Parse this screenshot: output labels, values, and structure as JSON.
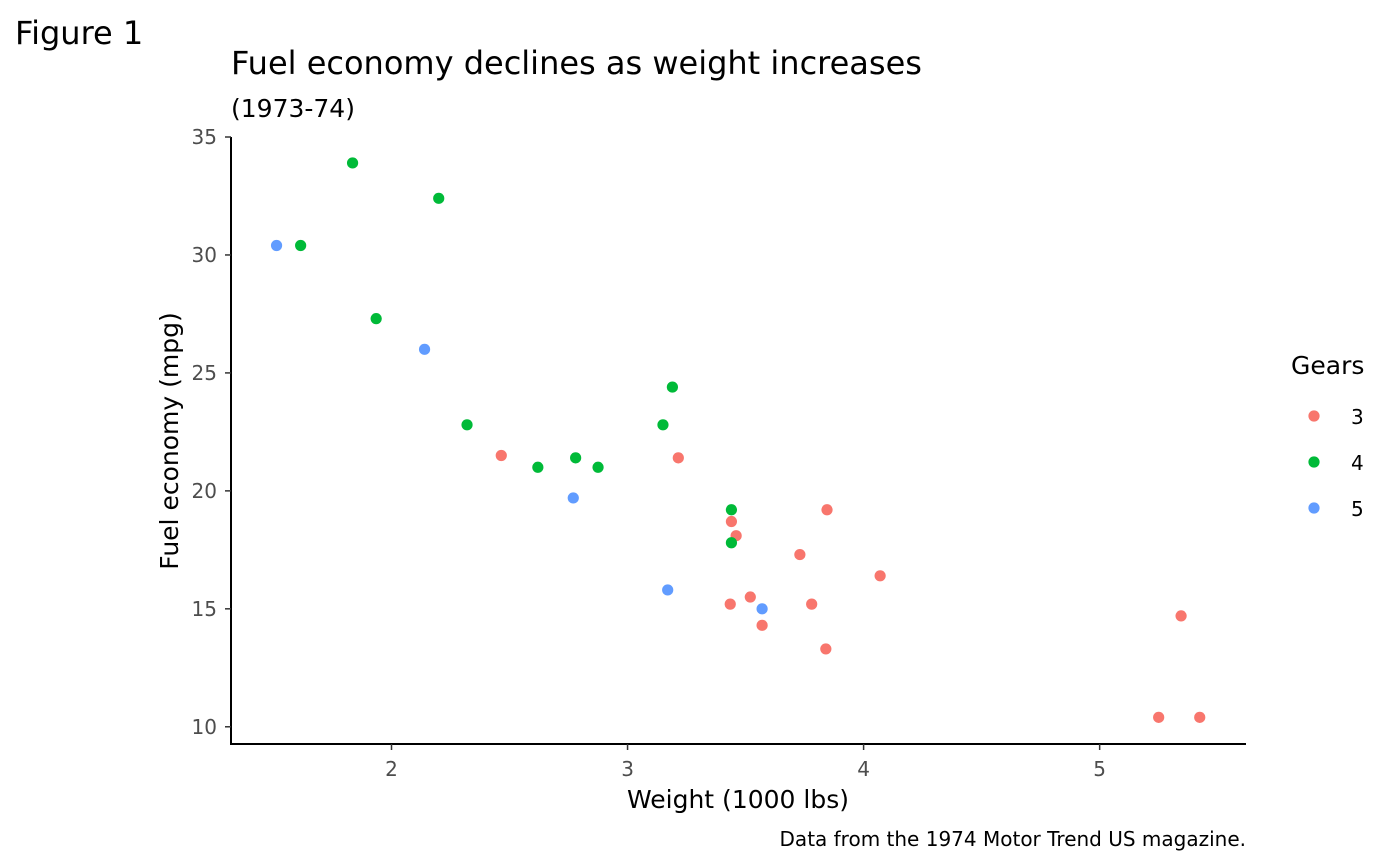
{
  "figure_label": "Figure 1",
  "chart_data": {
    "type": "scatter",
    "title": "Fuel economy declines as weight increases",
    "subtitle": "(1973-74)",
    "xlabel": "Weight (1000 lbs)",
    "ylabel": "Fuel economy (mpg)",
    "caption": "Data from the 1974 Motor Trend US magazine.",
    "xlim": [
      1.32,
      5.62
    ],
    "ylim": [
      9.27,
      35.0
    ],
    "xticks": [
      2,
      3,
      4,
      5
    ],
    "yticks": [
      10,
      15,
      20,
      25,
      30,
      35
    ],
    "grid": false,
    "legend": {
      "title": "Gears",
      "position": "right"
    },
    "series": [
      {
        "name": "3",
        "color": "#F8766D",
        "points": [
          [
            3.215,
            21.4
          ],
          [
            3.44,
            18.7
          ],
          [
            3.46,
            18.1
          ],
          [
            3.57,
            14.3
          ],
          [
            4.07,
            16.4
          ],
          [
            3.73,
            17.3
          ],
          [
            3.78,
            15.2
          ],
          [
            5.25,
            10.4
          ],
          [
            5.424,
            10.4
          ],
          [
            5.345,
            14.7
          ],
          [
            2.465,
            21.5
          ],
          [
            3.52,
            15.5
          ],
          [
            3.435,
            15.2
          ],
          [
            3.84,
            13.3
          ],
          [
            3.845,
            19.2
          ]
        ]
      },
      {
        "name": "4",
        "color": "#00BA38",
        "points": [
          [
            2.62,
            21.0
          ],
          [
            2.875,
            21.0
          ],
          [
            2.32,
            22.8
          ],
          [
            3.19,
            24.4
          ],
          [
            3.15,
            22.8
          ],
          [
            3.44,
            19.2
          ],
          [
            3.44,
            17.8
          ],
          [
            2.2,
            32.4
          ],
          [
            1.615,
            30.4
          ],
          [
            1.835,
            33.9
          ],
          [
            1.935,
            27.3
          ],
          [
            2.78,
            21.4
          ]
        ]
      },
      {
        "name": "5",
        "color": "#619CFF",
        "points": [
          [
            2.14,
            26.0
          ],
          [
            1.513,
            30.4
          ],
          [
            3.17,
            15.8
          ],
          [
            2.77,
            19.7
          ],
          [
            3.57,
            15.0
          ]
        ]
      }
    ]
  }
}
